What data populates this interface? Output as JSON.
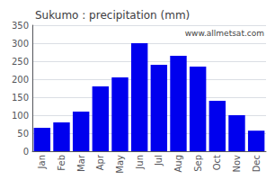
{
  "chart_data": {
    "type": "bar",
    "title": "Sukumo : precipitation (mm)",
    "categories": [
      "Jan",
      "Feb",
      "Mar",
      "Apr",
      "May",
      "Jun",
      "Jul",
      "Aug",
      "Sep",
      "Oct",
      "Nov",
      "Dec"
    ],
    "values": [
      65,
      80,
      110,
      180,
      205,
      300,
      240,
      265,
      235,
      140,
      100,
      57
    ],
    "color": "#0000ee",
    "ylim": [
      0,
      350
    ],
    "yticks": [
      0,
      50,
      100,
      150,
      200,
      250,
      300,
      350
    ],
    "grid": true,
    "annotations": [
      "www.allmetsat.com"
    ]
  }
}
